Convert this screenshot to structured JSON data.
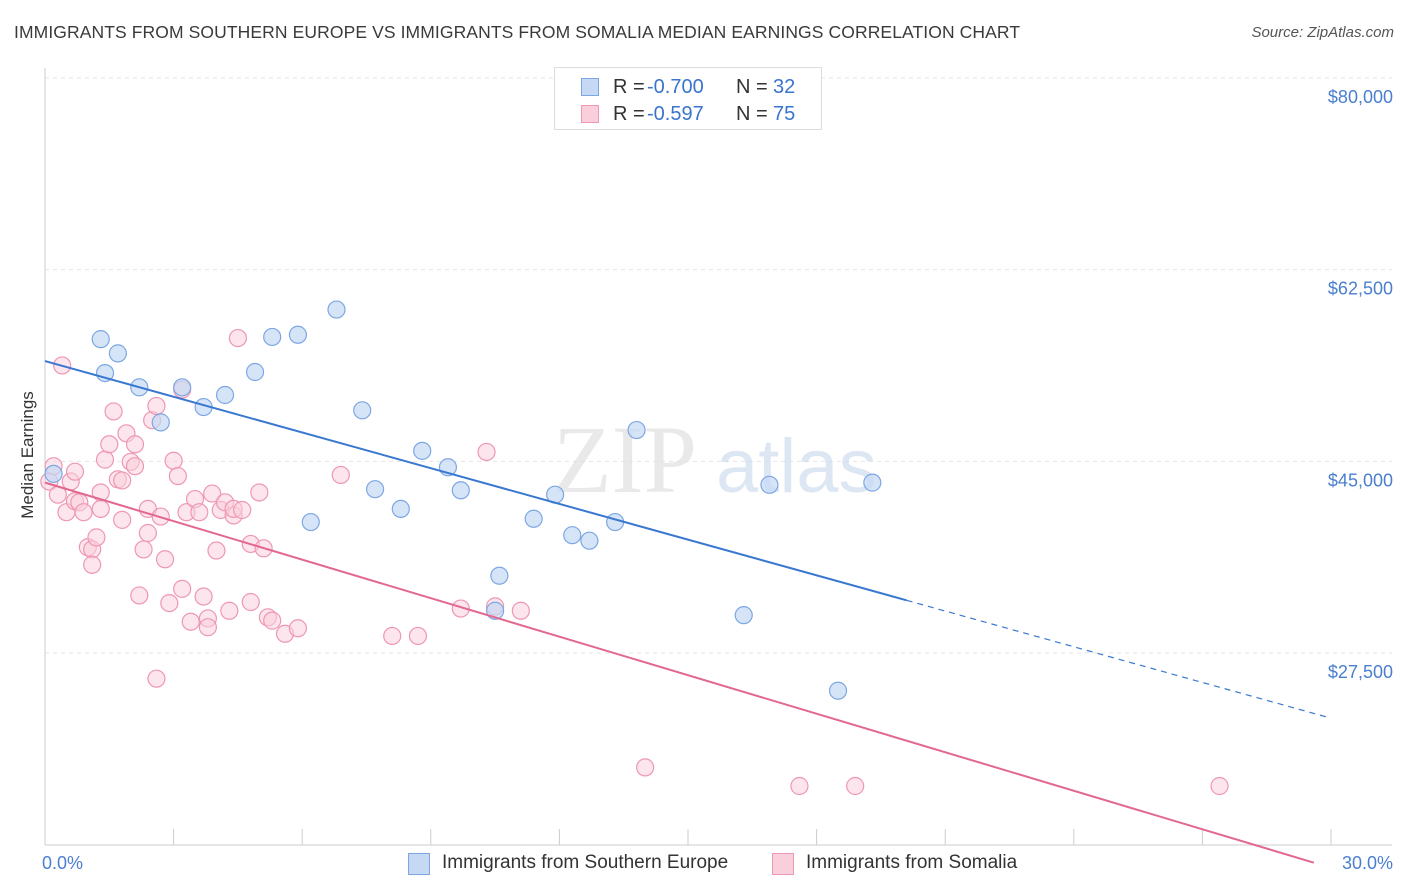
{
  "header": {
    "title": "IMMIGRANTS FROM SOUTHERN EUROPE VS IMMIGRANTS FROM SOMALIA MEDIAN EARNINGS CORRELATION CHART",
    "source": "Source: ZipAtlas.com"
  },
  "legend": {
    "rows": [
      {
        "r_label": "R =",
        "r_value": "-0.700",
        "n_label": "N =",
        "n_value": "32"
      },
      {
        "r_label": "R =",
        "r_value": "-0.597",
        "n_label": "N =",
        "n_value": "75"
      }
    ]
  },
  "bottom_legend": {
    "series0": "Immigrants from Southern Europe",
    "series1": "Immigrants from Somalia"
  },
  "watermark": {
    "zip": "ZIP",
    "atlas": "atlas"
  },
  "colors": {
    "blue_fill": "#c5d9f5",
    "blue_stroke": "#7da7e3",
    "blue_line": "#3a78d0",
    "pink_fill": "#f9cfdc",
    "pink_stroke": "#ee97b3",
    "pink_line": "#e2688f",
    "grid": "#e5e5e5",
    "tick_text": "#4a7fd0"
  },
  "chart_data": {
    "type": "scatter",
    "title": "IMMIGRANTS FROM SOUTHERN EUROPE VS IMMIGRANTS FROM SOMALIA MEDIAN EARNINGS CORRELATION CHART",
    "xlabel": "",
    "ylabel": "Median Earnings",
    "xlim": [
      0,
      30
    ],
    "ylim": [
      10000,
      82000
    ],
    "x_tick_labels": [
      "0.0%",
      "30.0%"
    ],
    "y_ticks": [
      80000,
      62500,
      45000,
      27500
    ],
    "y_tick_labels": [
      "$80,000",
      "$62,500",
      "$45,000",
      "$27,500"
    ],
    "grid": true,
    "series": [
      {
        "name": "Immigrants from Southern Europe",
        "R": -0.7,
        "N": 32,
        "trend": {
          "x_start": 0.0,
          "y_start": 55800,
          "x_solid_end": 20.1,
          "x_end": 29.9,
          "y_end": 23300
        },
        "points": [
          [
            0.2,
            45500
          ],
          [
            1.3,
            57800
          ],
          [
            1.4,
            54700
          ],
          [
            1.7,
            56500
          ],
          [
            2.2,
            53400
          ],
          [
            2.7,
            50200
          ],
          [
            3.2,
            53400
          ],
          [
            3.7,
            51600
          ],
          [
            4.2,
            52700
          ],
          [
            4.9,
            54800
          ],
          [
            5.3,
            58000
          ],
          [
            5.9,
            58200
          ],
          [
            6.2,
            41100
          ],
          [
            6.8,
            60500
          ],
          [
            7.4,
            51300
          ],
          [
            7.7,
            44100
          ],
          [
            8.3,
            42300
          ],
          [
            8.8,
            47600
          ],
          [
            9.4,
            46100
          ],
          [
            9.7,
            44000
          ],
          [
            10.6,
            36200
          ],
          [
            10.5,
            33000
          ],
          [
            11.4,
            41400
          ],
          [
            11.9,
            43600
          ],
          [
            12.3,
            39900
          ],
          [
            12.7,
            39400
          ],
          [
            13.3,
            41100
          ],
          [
            13.8,
            49500
          ],
          [
            16.3,
            32600
          ],
          [
            16.9,
            44500
          ],
          [
            18.5,
            25700
          ],
          [
            19.3,
            44700
          ]
        ]
      },
      {
        "name": "Immigrants from Somalia",
        "R": -0.597,
        "N": 75,
        "trend": {
          "x_start": 0.0,
          "y_start": 44700,
          "x_end": 29.6,
          "y_end": 10000
        },
        "points": [
          [
            0.1,
            44800
          ],
          [
            0.2,
            46200
          ],
          [
            0.3,
            43600
          ],
          [
            0.4,
            55400
          ],
          [
            0.5,
            42000
          ],
          [
            0.6,
            44800
          ],
          [
            0.7,
            45700
          ],
          [
            0.7,
            43000
          ],
          [
            0.8,
            42900
          ],
          [
            0.9,
            42000
          ],
          [
            1.0,
            38800
          ],
          [
            1.1,
            38600
          ],
          [
            1.1,
            37200
          ],
          [
            1.2,
            39700
          ],
          [
            1.3,
            43800
          ],
          [
            1.3,
            42300
          ],
          [
            1.4,
            46800
          ],
          [
            1.5,
            48200
          ],
          [
            1.6,
            51200
          ],
          [
            1.7,
            45000
          ],
          [
            1.8,
            44900
          ],
          [
            1.8,
            41300
          ],
          [
            1.9,
            49200
          ],
          [
            2.0,
            46600
          ],
          [
            2.1,
            48200
          ],
          [
            2.1,
            46200
          ],
          [
            2.2,
            34400
          ],
          [
            2.3,
            38600
          ],
          [
            2.4,
            40100
          ],
          [
            2.4,
            42300
          ],
          [
            2.5,
            50400
          ],
          [
            2.6,
            51700
          ],
          [
            2.6,
            26800
          ],
          [
            2.7,
            41600
          ],
          [
            2.8,
            37700
          ],
          [
            2.9,
            33700
          ],
          [
            3.0,
            46700
          ],
          [
            3.1,
            45300
          ],
          [
            3.2,
            53200
          ],
          [
            3.2,
            35000
          ],
          [
            3.3,
            42000
          ],
          [
            3.4,
            32000
          ],
          [
            3.5,
            43200
          ],
          [
            3.6,
            42000
          ],
          [
            3.7,
            34300
          ],
          [
            3.8,
            32300
          ],
          [
            3.8,
            31500
          ],
          [
            3.9,
            43700
          ],
          [
            4.0,
            38500
          ],
          [
            4.1,
            42200
          ],
          [
            4.2,
            42900
          ],
          [
            4.3,
            33000
          ],
          [
            4.4,
            41700
          ],
          [
            4.4,
            42300
          ],
          [
            4.5,
            57900
          ],
          [
            4.6,
            42200
          ],
          [
            4.8,
            39100
          ],
          [
            4.8,
            33800
          ],
          [
            5.0,
            43800
          ],
          [
            5.1,
            38700
          ],
          [
            5.2,
            32400
          ],
          [
            5.3,
            32100
          ],
          [
            5.6,
            30900
          ],
          [
            5.9,
            31400
          ],
          [
            6.9,
            45400
          ],
          [
            8.1,
            30700
          ],
          [
            8.7,
            30700
          ],
          [
            9.7,
            33200
          ],
          [
            10.3,
            47500
          ],
          [
            10.5,
            33400
          ],
          [
            11.1,
            33000
          ],
          [
            14.0,
            18700
          ],
          [
            17.6,
            17000
          ],
          [
            18.9,
            17000
          ],
          [
            27.4,
            17000
          ]
        ]
      }
    ]
  }
}
